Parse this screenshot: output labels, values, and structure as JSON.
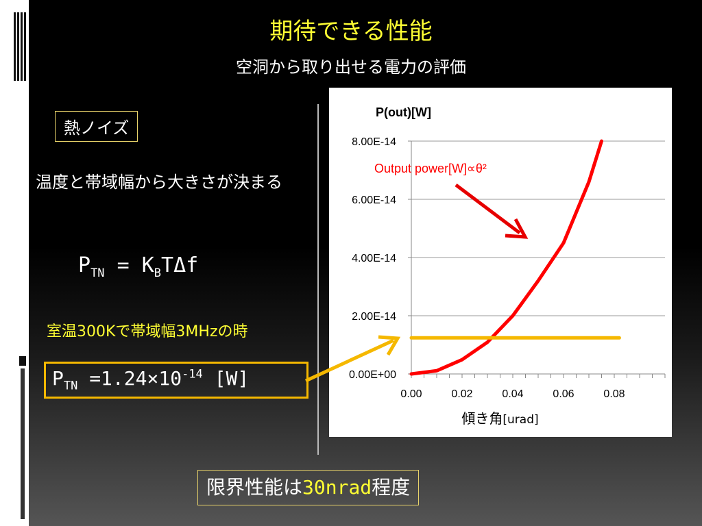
{
  "slide": {
    "title": "期待できる性能",
    "subtitle": "空洞から取り出せる電力の評価"
  },
  "left": {
    "box_label": "熱ノイズ",
    "description": "温度と帯域幅から大きさが決まる",
    "formula": {
      "p": "P",
      "p_sub": "TN",
      "eq": " = K",
      "k_sub": "B",
      "rest": "TΔf"
    },
    "condition": "室温300Kで帯域幅3MHzの時",
    "result": {
      "p": "P",
      "p_sub": "TN",
      "eq": " =1.24×10",
      "exp": "-14",
      "unit": " [W]"
    }
  },
  "conclusion": {
    "prefix": "限界性能は",
    "value": "30nrad",
    "suffix": "程度"
  },
  "chart_data": {
    "type": "line",
    "ylabel": "P(out)[W]",
    "xlabel_main": "傾き角",
    "xlabel_unit": "[urad]",
    "x_ticks": [
      "0.00",
      "0.02",
      "0.04",
      "0.06",
      "0.08"
    ],
    "y_ticks": [
      "0.00E+00",
      "2.00E-14",
      "4.00E-14",
      "6.00E-14",
      "8.00E-14"
    ],
    "xlim": [
      0,
      0.1
    ],
    "ylim": [
      0,
      8e-14
    ],
    "grid": true,
    "annotation": "Output power[W]∝θ²",
    "series": [
      {
        "color": "#ff0000",
        "x": [
          0,
          0.01,
          0.02,
          0.03,
          0.04,
          0.05,
          0.06,
          0.07,
          0.075
        ],
        "y": [
          0,
          1.1e-15,
          4.9e-15,
          1.09e-14,
          2e-14,
          3.2e-14,
          4.5e-14,
          6.6e-14,
          8e-14
        ]
      },
      {
        "color": "#f5b800",
        "x": [
          0,
          0.082
        ],
        "y": [
          1.24e-14,
          1.24e-14
        ]
      }
    ],
    "colors": {
      "annotation": "#ff0000",
      "arrow": "#e60000",
      "orange_arrow": "#f5b800"
    }
  }
}
